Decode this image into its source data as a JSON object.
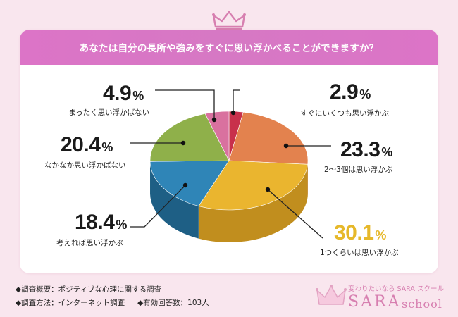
{
  "title": "あなたは自分の長所や強みをすぐに思い浮かべることができますか？",
  "chart_data": {
    "type": "pie",
    "title": "あなたは自分の長所や強みをすぐに思い浮かべることができますか？",
    "slices": [
      {
        "label": "すぐにいくつも思い浮かぶ",
        "value": 2.9,
        "color": "#c8304b",
        "side": "#9e2037"
      },
      {
        "label": "2〜3個は思い浮かぶ",
        "value": 23.3,
        "color": "#e3824e",
        "side": "#b6623a"
      },
      {
        "label": "1つくらいは思い浮かぶ",
        "value": 30.1,
        "color": "#eab52f",
        "side": "#c18e1e"
      },
      {
        "label": "考えれば思い浮かぶ",
        "value": 18.4,
        "color": "#2f85b7",
        "side": "#1e5f85"
      },
      {
        "label": "なかなか思い浮かばない",
        "value": 20.4,
        "color": "#8fb04a",
        "side": "#6c8836"
      },
      {
        "label": "まったく思い浮かばない",
        "value": 4.9,
        "color": "#d9719f",
        "side": "#ad5279"
      }
    ],
    "value_labels": [
      "2.9",
      "23.3",
      "30.1",
      "18.4",
      "20.4",
      "4.9"
    ],
    "unit": "%"
  },
  "footer": {
    "overview": "◆調査概要：ポジティブな心理に関する調査",
    "method": "◆調査方法：インターネット調査",
    "responses": "◆有効回答数：103人"
  },
  "brand": {
    "tagline": "変わりたいなら SARA スクール",
    "name": "SARA",
    "sub": "school"
  },
  "colors": {
    "background": "#f9e6ee",
    "header": "#dc74c7",
    "brand": "#d77fb0",
    "highlight": "#e6b82a"
  }
}
